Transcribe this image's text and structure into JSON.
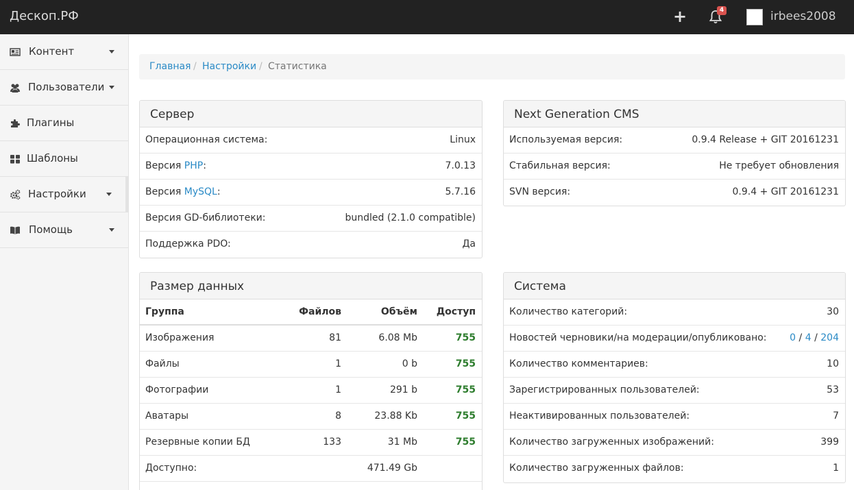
{
  "topbar": {
    "brand": "Дескоп.РФ",
    "plus_icon": "plus-icon",
    "bell_icon": "bell-icon",
    "notifications_count": "4",
    "username": "irbees2008"
  },
  "sidebar": {
    "items": [
      {
        "label": "Контент",
        "icon": "newspaper-icon"
      },
      {
        "label": "Пользователи",
        "icon": "users-icon"
      },
      {
        "label": "Плагины",
        "icon": "puzzle-icon"
      },
      {
        "label": "Шаблоны",
        "icon": "th-large-icon"
      },
      {
        "label": "Настройки",
        "icon": "cogs-icon"
      },
      {
        "label": "Помощь",
        "icon": "book-icon"
      }
    ]
  },
  "breadcrumb": {
    "home": "Главная",
    "settings": "Настройки",
    "current": "Статистика",
    "separator": "/"
  },
  "server": {
    "title": "Сервер",
    "os_label": "Операционная система:",
    "os_value": "Linux",
    "php_prefix": "Версия ",
    "php_link": "PHP",
    "php_suffix": ":",
    "php_value": "7.0.13",
    "mysql_prefix": "Версия ",
    "mysql_link": "MySQL",
    "mysql_suffix": ":",
    "mysql_value": "5.7.16",
    "gd_label": "Версия GD-библиотеки:",
    "gd_value": "bundled (2.1.0 compatible)",
    "pdo_label": "Поддержка PDO:",
    "pdo_value": "Да"
  },
  "cms": {
    "title": "Next Generation CMS",
    "used_label": "Используемая версия:",
    "used_value": "0.9.4 Release + GIT 20161231",
    "stable_label": "Стабильная версия:",
    "stable_value": "Не требует обновления",
    "svn_label": "SVN версия:",
    "svn_value": "0.9.4 + GIT 20161231"
  },
  "data_size": {
    "title": "Размер данных",
    "headers": {
      "group": "Группа",
      "files": "Файлов",
      "size": "Объём",
      "access": "Доступ"
    },
    "rows": [
      {
        "group": "Изображения",
        "files": "81",
        "size": "6.08 Mb",
        "access": "755"
      },
      {
        "group": "Файлы",
        "files": "1",
        "size": "0 b",
        "access": "755"
      },
      {
        "group": "Фотографии",
        "files": "1",
        "size": "291 b",
        "access": "755"
      },
      {
        "group": "Аватары",
        "files": "8",
        "size": "23.88 Kb",
        "access": "755"
      },
      {
        "group": "Резервные копии БД",
        "files": "133",
        "size": "31 Mb",
        "access": "755"
      }
    ],
    "available_label": "Доступно:",
    "available_value": "471.49 Gb"
  },
  "system": {
    "title": "Система",
    "categories_label": "Количество категорий:",
    "categories_value": "30",
    "news_label": "Новостей черновики/на модерации/опубликовано:",
    "news_draft": "0",
    "news_moderation": "4",
    "news_published": "204",
    "news_sep": " / ",
    "comments_label": "Количество комментариев:",
    "comments_value": "10",
    "registered_label": "Зарегистрированных пользователей:",
    "registered_value": "53",
    "inactive_label": "Неактивированных пользователей:",
    "inactive_value": "7",
    "images_label": "Количество загруженных изображений:",
    "images_value": "399",
    "files_label": "Количество загруженных файлов:",
    "files_value": "1"
  },
  "colors": {
    "topbar_bg": "#222222",
    "link": "#2a8ac6",
    "access_green": "#2e7d2e",
    "warning_orange": "#e07a1f",
    "badge_red": "#d9534f"
  }
}
